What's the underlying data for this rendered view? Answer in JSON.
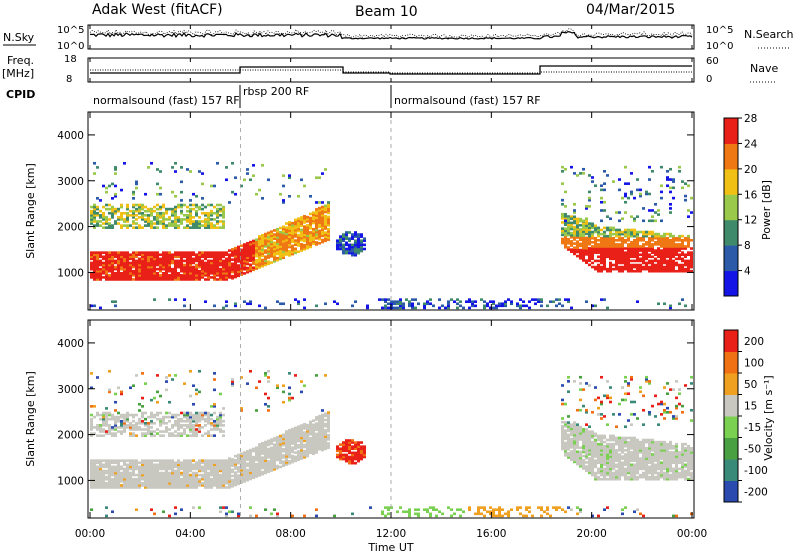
{
  "header": {
    "title": "Adak West (fitACF)",
    "beam": "Beam 10",
    "date": "04/Mar/2015"
  },
  "left_labels": {
    "nsky": "N.Sky",
    "freq": "Freq.",
    "mhz": "[MHz]",
    "cpid": "CPID"
  },
  "right_labels": {
    "nsearch": "N.Search",
    "nave": "Nave"
  },
  "noise_axes": {
    "left_top": "10^5",
    "left_bottom": "10^0",
    "right_top": "10^5",
    "right_bottom": "10^0"
  },
  "freq_axes": {
    "left_top": "18",
    "left_bottom": "8",
    "right_top": "60",
    "right_bottom": "0"
  },
  "cpid_segments": [
    {
      "label": "normalsound (fast) 157 RF",
      "start_hour": 0,
      "end_hour": 6
    },
    {
      "label": "rbsp 200 RF",
      "start_hour": 6,
      "end_hour": 12
    },
    {
      "label": "normalsound (fast) 157 RF",
      "start_hour": 12,
      "end_hour": 24
    }
  ],
  "chart_data": [
    {
      "type": "heatmap",
      "name": "power",
      "ylabel": "Slant Range [km]",
      "ylim": [
        180,
        4500
      ],
      "yticks": [
        "1000",
        "2000",
        "3000",
        "4000"
      ],
      "colorbar_label": "Power [dB]",
      "colorbar_ticks": [
        "4",
        "8",
        "12",
        "16",
        "20",
        "24",
        "28"
      ],
      "colors": [
        "#1414e6",
        "#2a5aa8",
        "#3f8a6a",
        "#9ac84a",
        "#f0c014",
        "#f07814",
        "#e82018"
      ]
    },
    {
      "type": "heatmap",
      "name": "velocity",
      "ylabel": "Slant Range [km]",
      "ylim": [
        180,
        4500
      ],
      "yticks": [
        "1000",
        "2000",
        "3000",
        "4000"
      ],
      "colorbar_label": "Velocity [m s⁻¹]",
      "colorbar_ticks": [
        "200",
        "100",
        "50",
        "15",
        "-15",
        "-50",
        "-100",
        "-200"
      ],
      "colors": [
        "#2a4ab0",
        "#3a8a7a",
        "#48a040",
        "#7ad050",
        "#c8c8c0",
        "#f0a020",
        "#f07014",
        "#e82018"
      ]
    }
  ],
  "time_axis": {
    "xlabel": "Time UT",
    "xlim_hours": [
      0,
      24
    ],
    "ticks": [
      "00:00",
      "04:00",
      "08:00",
      "12:00",
      "16:00",
      "20:00",
      "00:00"
    ]
  }
}
